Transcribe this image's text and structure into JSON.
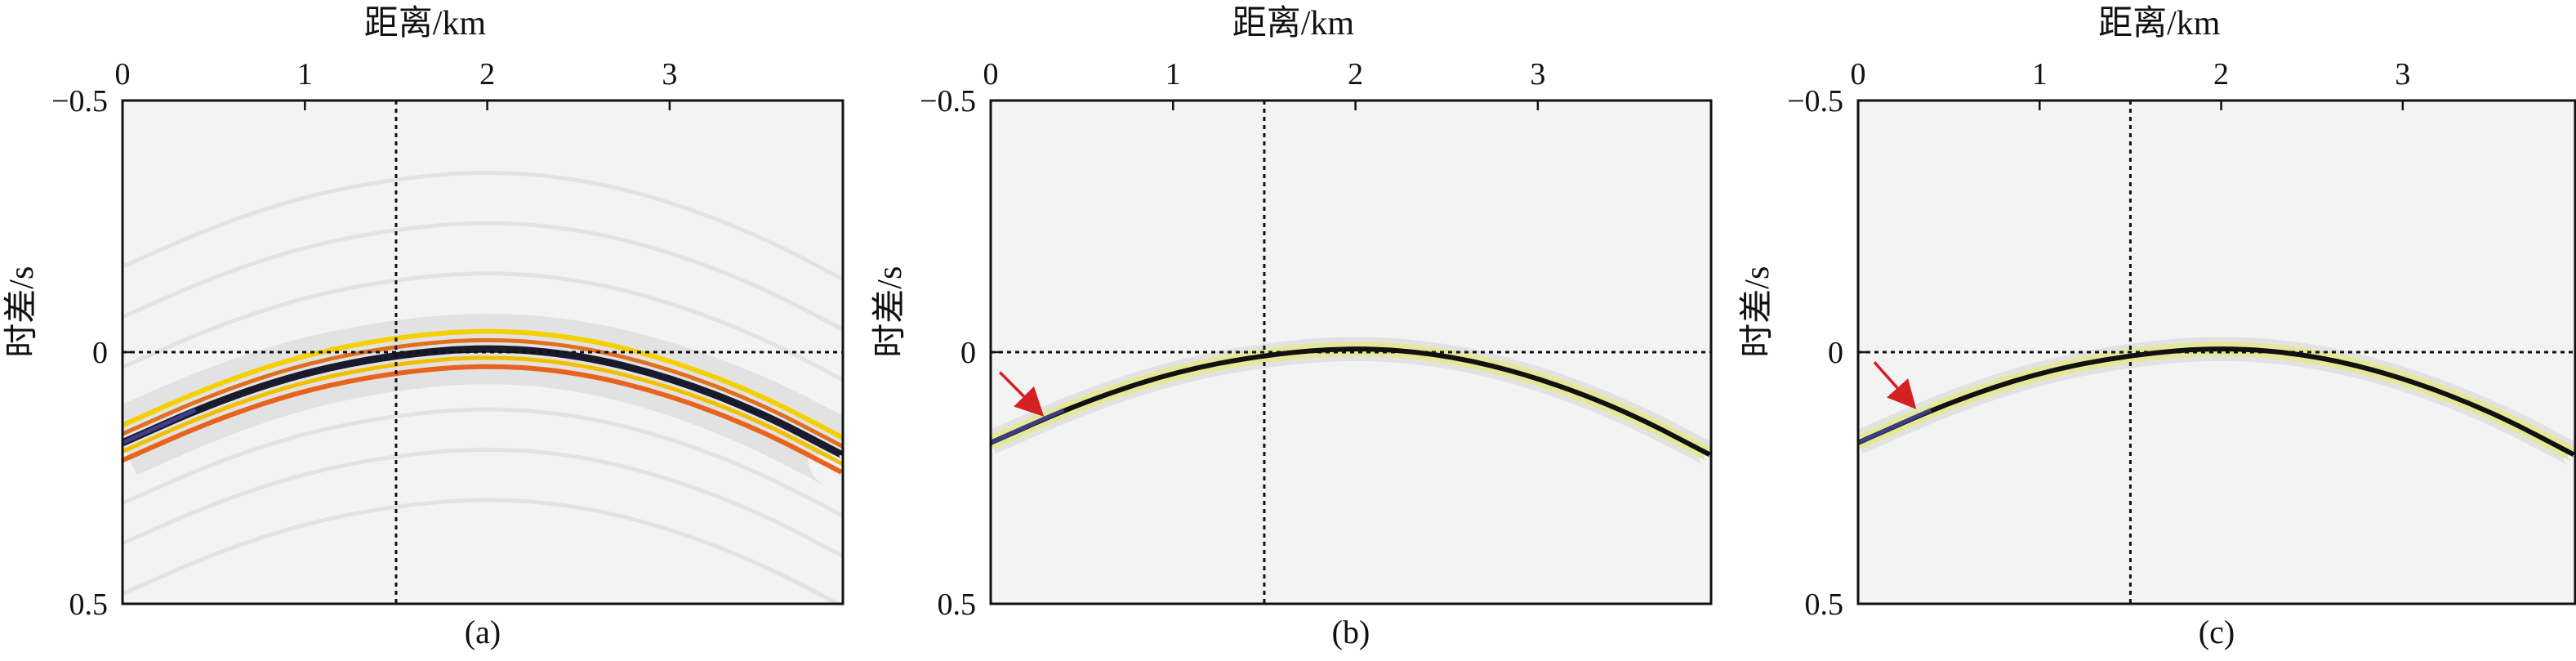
{
  "chart_data": [
    {
      "type": "heatmap",
      "panel_label": "(a)",
      "xlabel": "距离/km",
      "ylabel": "时差/s",
      "xlim": [
        0,
        3.95
      ],
      "ylim": [
        -0.5,
        0.5
      ],
      "y_inverted": true,
      "x_axis_position": "top",
      "x_ticks": [
        0,
        1,
        2,
        3
      ],
      "x_tick_labels": [
        "0",
        "1",
        "2",
        "3"
      ],
      "y_ticks": [
        -0.5,
        0,
        0.5
      ],
      "y_tick_labels": [
        "−0.5",
        "0",
        "0.5"
      ],
      "reference_lines": {
        "vertical_x": 1.5,
        "horizontal_y": 0
      },
      "curve": {
        "x": [
          0,
          0.5,
          1.0,
          1.5,
          2.0,
          2.5,
          3.0,
          3.5,
          3.95
        ],
        "y": [
          0.18,
          0.1,
          0.04,
          0.005,
          -0.01,
          0.005,
          0.05,
          0.12,
          0.205
        ]
      },
      "band_halfwidth": 0.035,
      "band_colors": [
        "#f5d000",
        "#e8641e",
        "#1a1a2e"
      ],
      "background_traces": true,
      "arrow": null
    },
    {
      "type": "heatmap",
      "panel_label": "(b)",
      "xlabel": "距离/km",
      "ylabel": "时差/s",
      "xlim": [
        0,
        3.95
      ],
      "ylim": [
        -0.5,
        0.5
      ],
      "y_inverted": true,
      "x_axis_position": "top",
      "x_ticks": [
        0,
        1,
        2,
        3
      ],
      "x_tick_labels": [
        "0",
        "1",
        "2",
        "3"
      ],
      "y_ticks": [
        -0.5,
        0,
        0.5
      ],
      "y_tick_labels": [
        "−0.5",
        "0",
        "0.5"
      ],
      "reference_lines": {
        "vertical_x": 1.5,
        "horizontal_y": 0
      },
      "curve": {
        "x": [
          0,
          0.5,
          1.0,
          1.5,
          2.0,
          2.5,
          3.0,
          3.5,
          3.95
        ],
        "y": [
          0.18,
          0.1,
          0.04,
          0.005,
          -0.01,
          0.005,
          0.05,
          0.12,
          0.205
        ]
      },
      "band_halfwidth": 0.012,
      "band_colors": [
        "#e5e89a",
        "#111111"
      ],
      "background_traces": false,
      "arrow": {
        "from": [
          0.05,
          0.04
        ],
        "to": [
          0.27,
          0.12
        ],
        "color": "#d42020"
      }
    },
    {
      "type": "heatmap",
      "panel_label": "(c)",
      "xlabel": "距离/km",
      "ylabel": "时差/s",
      "xlim": [
        0,
        3.95
      ],
      "ylim": [
        -0.5,
        0.5
      ],
      "y_inverted": true,
      "x_axis_position": "top",
      "x_ticks": [
        0,
        1,
        2,
        3
      ],
      "x_tick_labels": [
        "0",
        "1",
        "2",
        "3"
      ],
      "y_ticks": [
        -0.5,
        0,
        0.5
      ],
      "y_tick_labels": [
        "−0.5",
        "0",
        "0.5"
      ],
      "reference_lines": {
        "vertical_x": 1.5,
        "horizontal_y": 0
      },
      "curve": {
        "x": [
          0,
          0.5,
          1.0,
          1.5,
          2.0,
          2.5,
          3.0,
          3.5,
          3.95
        ],
        "y": [
          0.18,
          0.1,
          0.04,
          0.005,
          -0.01,
          0.005,
          0.05,
          0.12,
          0.205
        ]
      },
      "band_halfwidth": 0.012,
      "band_colors": [
        "#e5e89a",
        "#111111"
      ],
      "background_traces": false,
      "arrow": {
        "from": [
          0.09,
          0.02
        ],
        "to": [
          0.3,
          0.105
        ],
        "color": "#d42020"
      }
    }
  ]
}
